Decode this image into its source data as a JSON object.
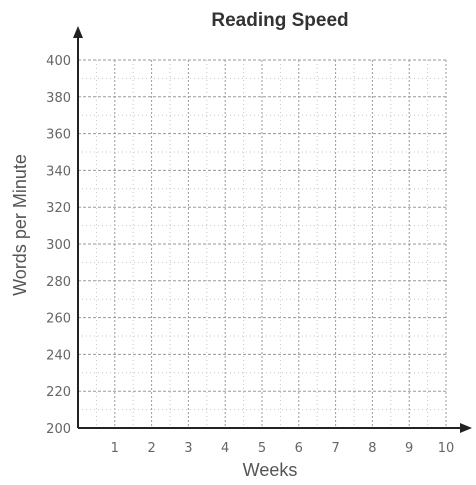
{
  "chart_data": {
    "type": "line",
    "title": "Reading Speed",
    "xlabel": "Weeks",
    "ylabel": "Words per Minute",
    "x_ticks": [
      "1",
      "2",
      "3",
      "4",
      "5",
      "6",
      "7",
      "8",
      "9",
      "10"
    ],
    "y_ticks": [
      "200",
      "220",
      "240",
      "260",
      "280",
      "300",
      "320",
      "340",
      "360",
      "380",
      "400"
    ],
    "xlim": [
      0,
      10
    ],
    "ylim": [
      200,
      400
    ],
    "grid": true,
    "series": []
  }
}
